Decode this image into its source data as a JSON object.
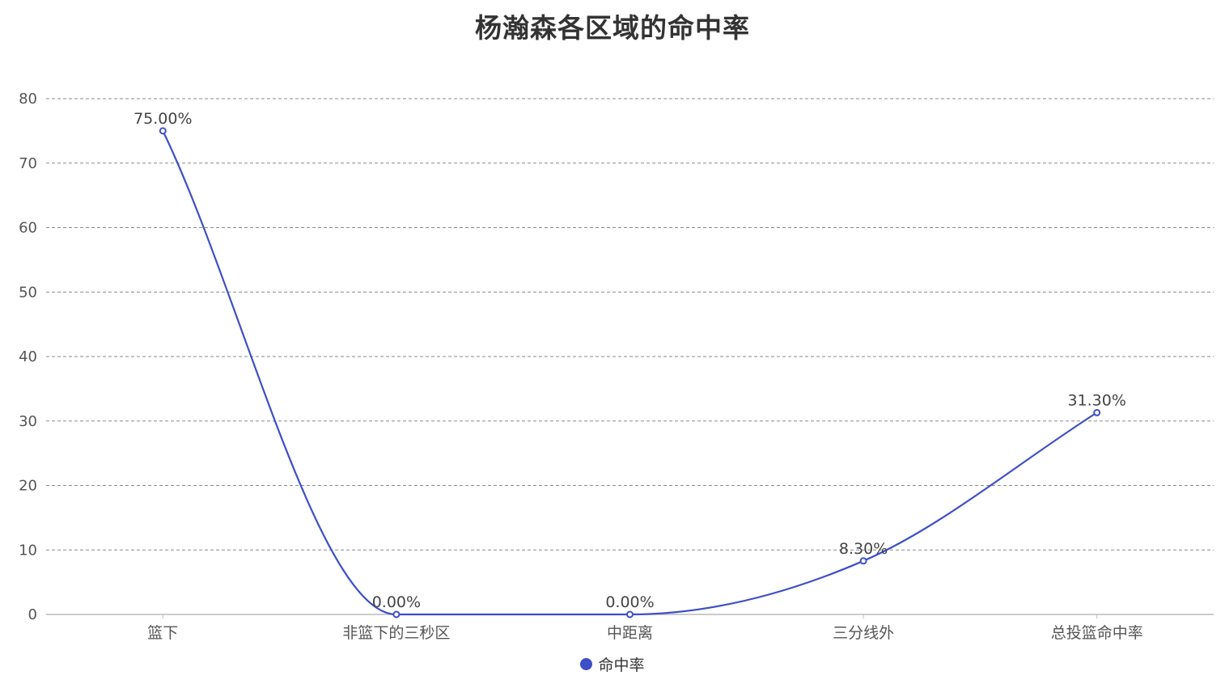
{
  "chart_data": {
    "type": "line",
    "title": "杨瀚森各区域的命中率",
    "categories": [
      "篮下",
      "非篮下的三秒区",
      "中距离",
      "三分线外",
      "总投篮命中率"
    ],
    "series": [
      {
        "name": "命中率",
        "values": [
          75.0,
          0.0,
          0.0,
          8.3,
          31.3
        ],
        "labels": [
          "75.00%",
          "0.00%",
          "0.00%",
          "8.30%",
          "31.30%"
        ],
        "color": "#3d4fc7"
      }
    ],
    "ylim": [
      0,
      80
    ],
    "yticks": [
      "0",
      "10",
      "20",
      "30",
      "40",
      "50",
      "60",
      "70",
      "80"
    ],
    "smooth": true,
    "grid": "horizontal dashed",
    "legend_position": "bottom"
  }
}
